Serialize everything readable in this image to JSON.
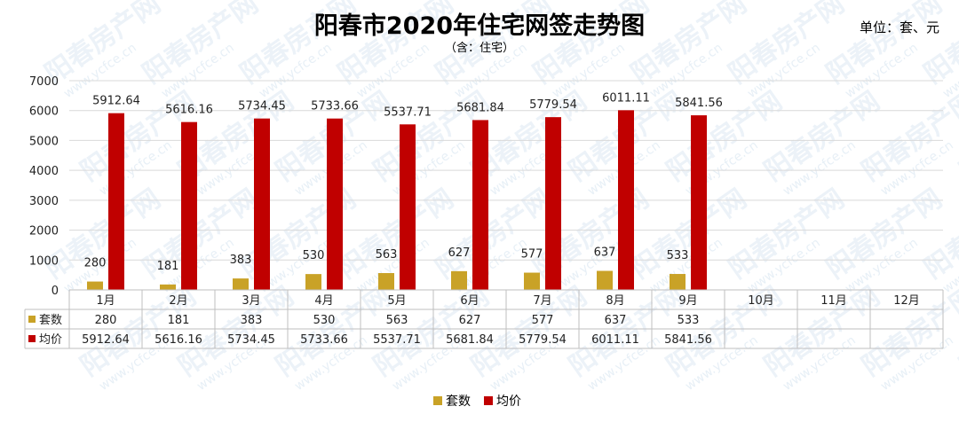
{
  "title": "阳春市2020年住宅网签走势图",
  "subtitle": "（含：住宅）",
  "unit_label": "单位：套、元",
  "watermark": {
    "text": "阳春房产网",
    "url": "www.ycfce.cn"
  },
  "colors": {
    "units": "#C9A227",
    "price": "#C00000",
    "grid": "#d9d9d9",
    "table_border": "#bfbfbf"
  },
  "chart_data": {
    "type": "bar",
    "title": "阳春市2020年住宅网签走势图",
    "subtitle": "（含：住宅）",
    "categories": [
      "1月",
      "2月",
      "3月",
      "4月",
      "5月",
      "6月",
      "7月",
      "8月",
      "9月",
      "10月",
      "11月",
      "12月"
    ],
    "series": [
      {
        "name": "套数",
        "values": [
          280,
          181,
          383,
          530,
          563,
          627,
          577,
          637,
          533,
          null,
          null,
          null
        ],
        "labels": [
          "280",
          "181",
          "383",
          "530",
          "563",
          "627",
          "577",
          "637",
          "533",
          "",
          "",
          ""
        ]
      },
      {
        "name": "均价",
        "values": [
          5912.64,
          5616.16,
          5734.45,
          5733.66,
          5537.71,
          5681.84,
          5779.54,
          6011.11,
          5841.56,
          null,
          null,
          null
        ],
        "labels": [
          "5912.64",
          "5616.16",
          "5734.45",
          "5733.66",
          "5537.71",
          "5681.84",
          "5779.54",
          "6011.11",
          "5841.56",
          "",
          "",
          ""
        ]
      }
    ],
    "yticks": [
      "0",
      "1000",
      "2000",
      "3000",
      "4000",
      "5000",
      "6000",
      "7000"
    ],
    "ylim": [
      0,
      7000
    ],
    "grid": true,
    "legend": "bottom-center",
    "data_table": true
  }
}
